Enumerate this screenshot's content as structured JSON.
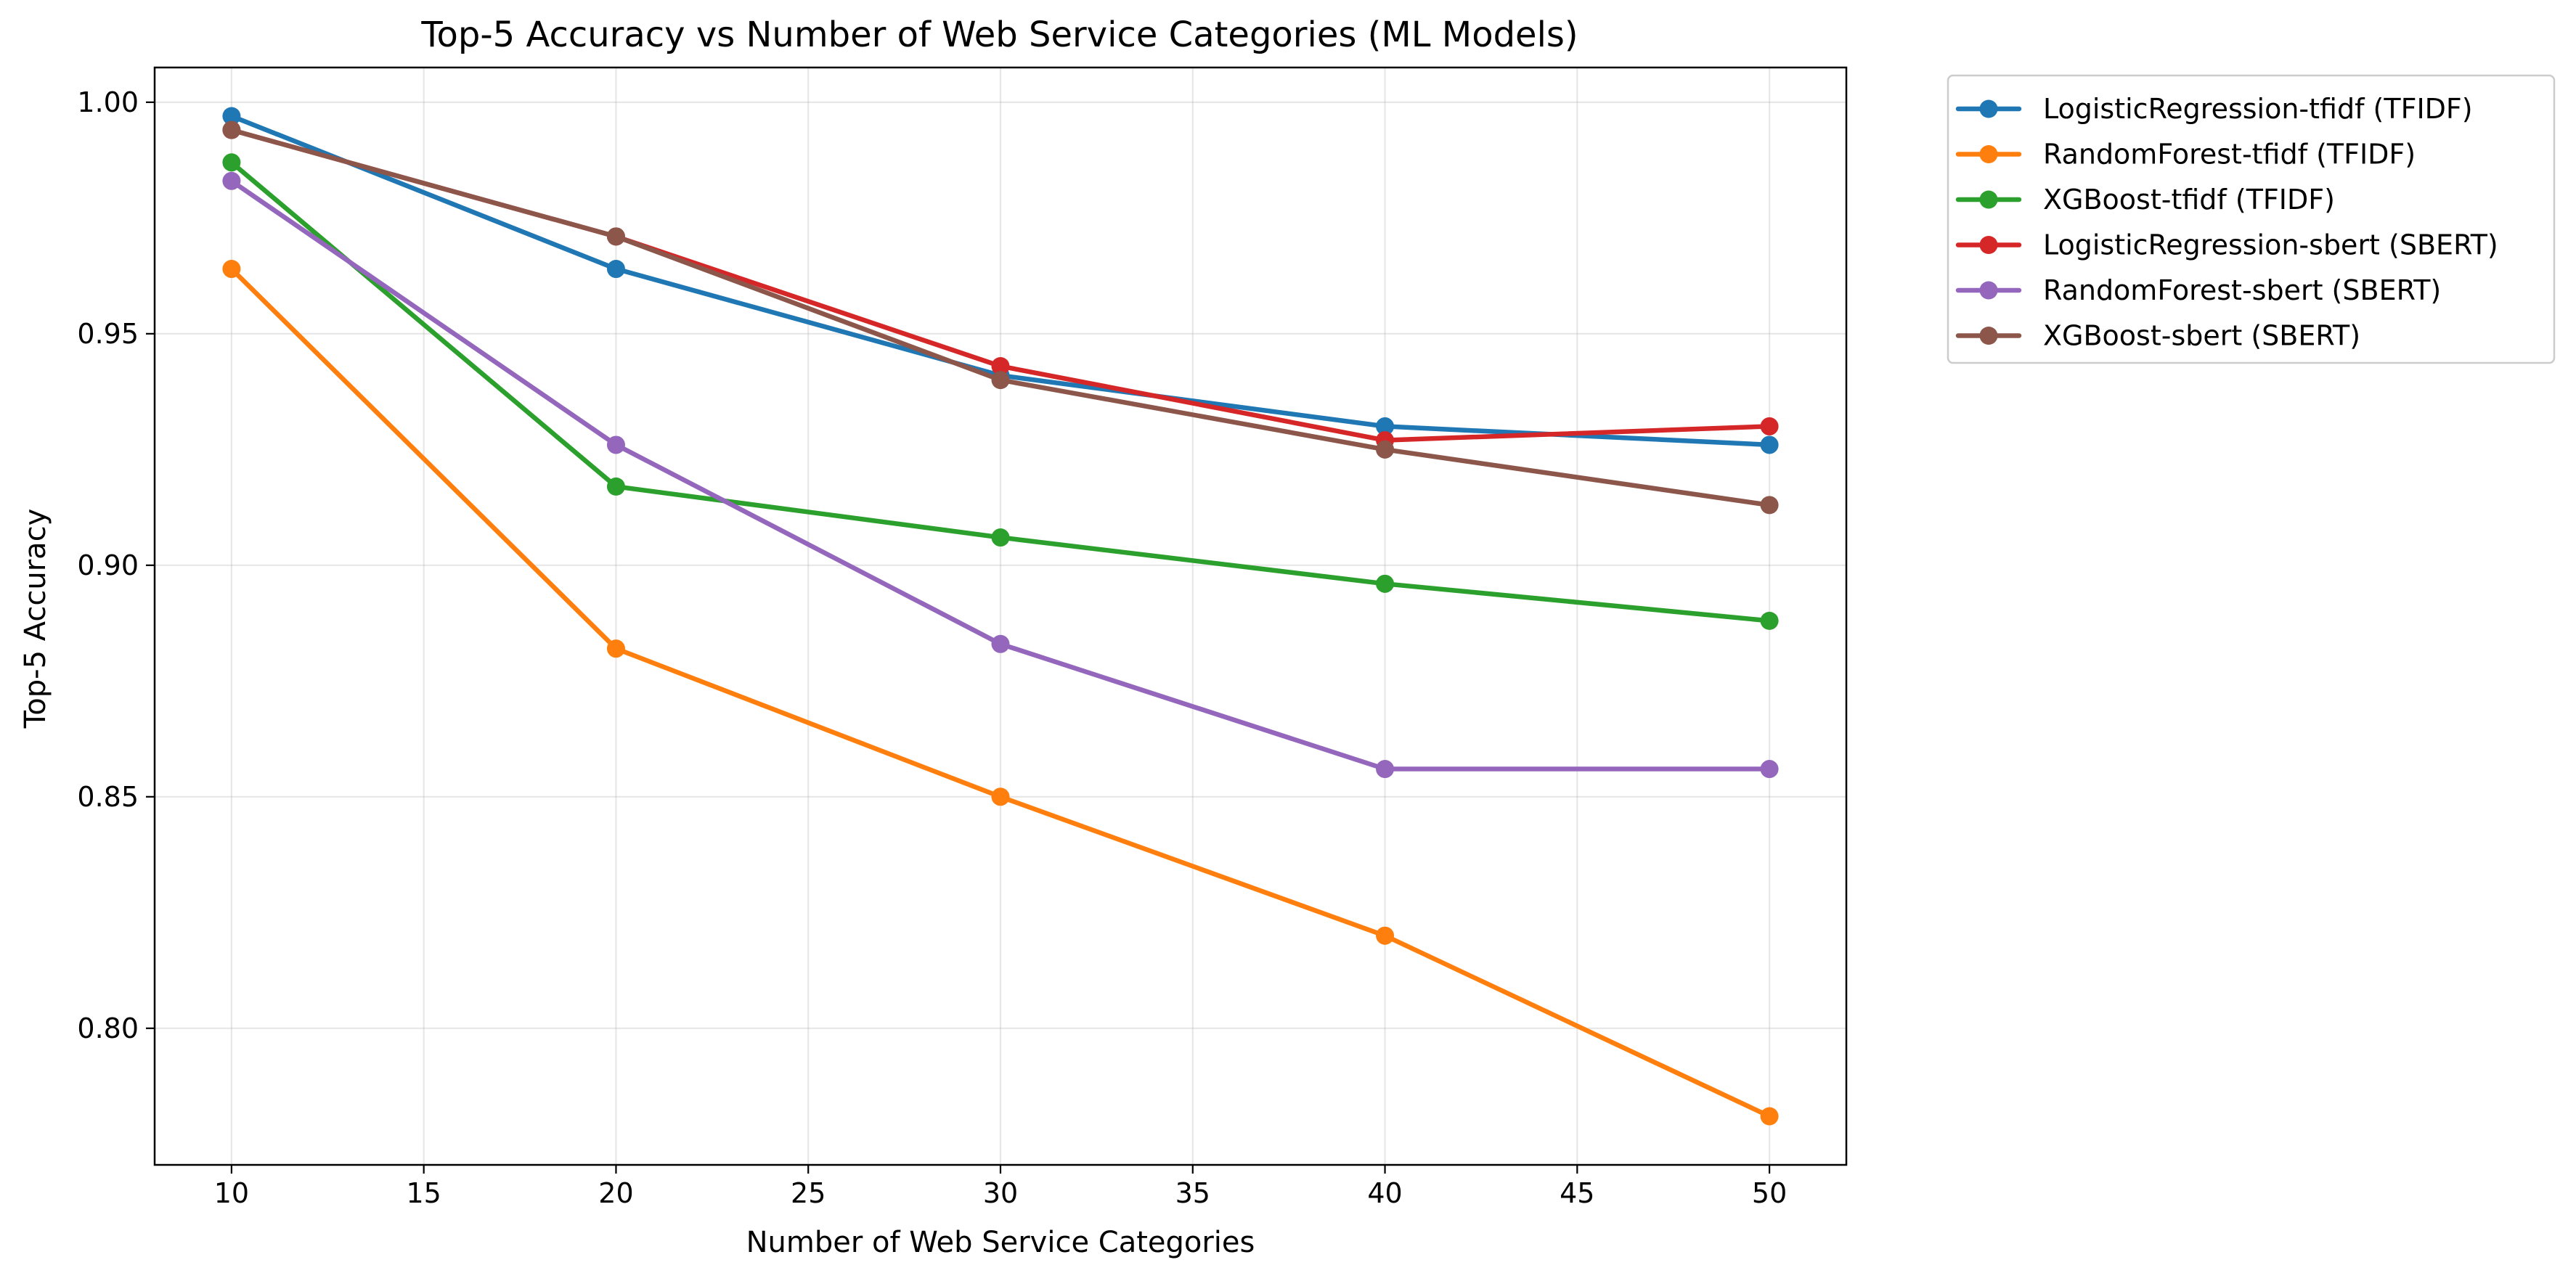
{
  "chart_data": {
    "type": "line",
    "title": "Top-5 Accuracy vs Number of Web Service Categories (ML Models)",
    "xlabel": "Number of Web Service Categories",
    "ylabel": "Top-5 Accuracy",
    "x": [
      10,
      20,
      30,
      40,
      50
    ],
    "xlim": [
      8,
      52
    ],
    "ylim": [
      0.7705,
      1.0075
    ],
    "xticks": [
      10,
      15,
      20,
      25,
      30,
      35,
      40,
      45,
      50
    ],
    "yticks": [
      0.8,
      0.85,
      0.9,
      0.95,
      1.0
    ],
    "xtick_labels": [
      "10",
      "15",
      "20",
      "25",
      "30",
      "35",
      "40",
      "45",
      "50"
    ],
    "ytick_labels": [
      "0.80",
      "0.85",
      "0.90",
      "0.95",
      "1.00"
    ],
    "grid": true,
    "legend_position": "outside-top-right",
    "markers": "circle",
    "series": [
      {
        "name": "LogisticRegression-tfidf (TFIDF)",
        "color": "#1f77b4",
        "values": [
          0.997,
          0.964,
          0.941,
          0.93,
          0.926
        ]
      },
      {
        "name": "RandomForest-tfidf (TFIDF)",
        "color": "#ff7f0e",
        "values": [
          0.964,
          0.882,
          0.85,
          0.82,
          0.781
        ]
      },
      {
        "name": "XGBoost-tfidf (TFIDF)",
        "color": "#2ca02c",
        "values": [
          0.987,
          0.917,
          0.906,
          0.896,
          0.888
        ]
      },
      {
        "name": "LogisticRegression-sbert (SBERT)",
        "color": "#d62728",
        "values": [
          0.994,
          0.971,
          0.943,
          0.927,
          0.93
        ]
      },
      {
        "name": "RandomForest-sbert (SBERT)",
        "color": "#9467bd",
        "values": [
          0.983,
          0.926,
          0.883,
          0.856,
          0.856
        ]
      },
      {
        "name": "XGBoost-sbert (SBERT)",
        "color": "#8c564b",
        "values": [
          0.994,
          0.971,
          0.94,
          0.925,
          0.913
        ]
      }
    ]
  }
}
